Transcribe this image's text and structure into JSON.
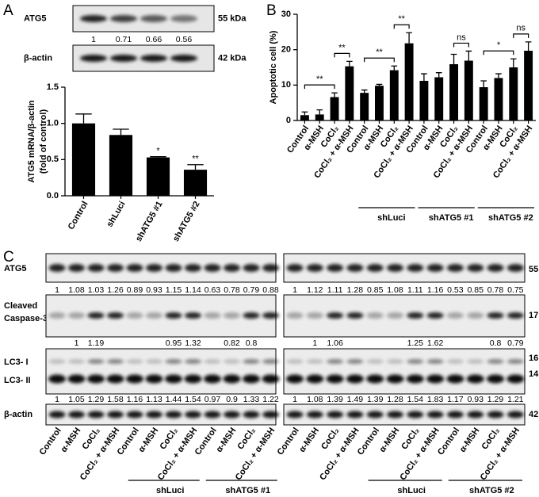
{
  "panel_labels": [
    "A",
    "B",
    "C"
  ],
  "chart_data": [
    {
      "type": "bar",
      "ylabel": [
        "ATG5 mRNA/β-actin",
        "(fold of control)"
      ],
      "categories": [
        "Control",
        "shLuci",
        "shATG5 #1",
        "shATG5 #2"
      ],
      "values": [
        1.0,
        0.84,
        0.53,
        0.36
      ],
      "errors": [
        0.13,
        0.08,
        0.01,
        0.07
      ],
      "significance": [
        null,
        null,
        "*",
        "**"
      ],
      "color": "#000000",
      "ylim": [
        0,
        1.5
      ],
      "yticks": [
        {
          "value": 0,
          "label": "0.0"
        },
        {
          "value": 0.5,
          "label": "0.5"
        },
        {
          "value": 1,
          "label": "1.0"
        },
        {
          "value": 1.5,
          "label": "1.5"
        }
      ]
    },
    {
      "type": "bar",
      "ylabel": [
        "Apoptotic cell (%)"
      ],
      "categories": [
        "Control",
        "α-MSH",
        "CoCl₂",
        "CoCl₂ + α-MSH",
        "Control",
        "α-MSH",
        "CoCl₂",
        "CoCl₂ + α-MSH",
        "Control",
        "α-MSH",
        "CoCl₂",
        "CoCl₂ + α-MSH",
        "Control",
        "α-MSH",
        "CoCl₂",
        "CoCl₂ + α-MSH"
      ],
      "values": [
        1.5,
        1.7,
        6.6,
        15.3,
        7.8,
        9.8,
        14.2,
        21.8,
        11.2,
        12.2,
        15.9,
        16.9,
        9.4,
        12.0,
        15.0,
        19.7
      ],
      "errors": [
        0.9,
        1.3,
        1.2,
        1.4,
        0.8,
        0.4,
        1.2,
        3.0,
        2.0,
        1.3,
        2.8,
        2.7,
        1.8,
        1.2,
        2.4,
        2.5
      ],
      "color": "#000000",
      "ylim": [
        0,
        30
      ],
      "yticks": [
        0,
        10,
        20,
        30
      ],
      "groups": [
        {
          "label": "shLuci",
          "start": 4,
          "end": 7
        },
        {
          "label": "shATG5 #1",
          "start": 8,
          "end": 11
        },
        {
          "label": "shATG5 #2",
          "start": 12,
          "end": 15
        }
      ],
      "brackets": [
        {
          "from": 0,
          "to": 2,
          "label": "**"
        },
        {
          "from": 2,
          "to": 3,
          "label": "**"
        },
        {
          "from": 4,
          "to": 6,
          "label": "**"
        },
        {
          "from": 6,
          "to": 7,
          "label": "**"
        },
        {
          "from": 10,
          "to": 11,
          "label": "ns"
        },
        {
          "from": 12,
          "to": 14,
          "label": "*"
        },
        {
          "from": 14,
          "to": 15,
          "label": "ns"
        }
      ]
    }
  ],
  "blot_A": {
    "rows": [
      {
        "label": "ATG5",
        "kda": "55 kDa"
      },
      {
        "label": "β-actin",
        "kda": "42 kDa"
      }
    ],
    "quant": [
      1,
      0.71,
      0.66,
      0.56
    ]
  },
  "blot_C": {
    "rows": [
      {
        "label": [
          "ATG5"
        ],
        "kda": [
          "55 kDa"
        ]
      },
      {
        "label": [
          "Cleaved",
          "Caspase-3"
        ],
        "kda": [
          "17 kDa"
        ]
      },
      {
        "label": [
          "LC3- I",
          "LC3- II"
        ],
        "kda": [
          "16 kDa",
          "14 kDa"
        ]
      },
      {
        "label": [
          "β-actin"
        ],
        "kda": [
          "42 kDa"
        ]
      }
    ],
    "lanes": [
      "Control",
      "α-MSH",
      "CoCl₂",
      "CoCl₂ + α-MSH",
      "Control",
      "α-MSH",
      "CoCl₂",
      "CoCl₂ + α-MSH",
      "Control",
      "α-MSH",
      "CoCl₂",
      "CoCl₂ + α-MSH"
    ],
    "halves": [
      {
        "groups": [
          {
            "label": "shLuci",
            "start": 4,
            "end": 7
          },
          {
            "label": "shATG5 #1",
            "start": 8,
            "end": 11
          }
        ],
        "quant": [
          [
            1,
            1.08,
            1.03,
            1.26,
            0.89,
            0.93,
            1.15,
            1.14,
            0.63,
            0.78,
            0.79,
            0.88
          ],
          [
            null,
            1,
            1.19,
            null,
            null,
            null,
            0.95,
            1.32,
            null,
            0.82,
            0.8,
            null
          ],
          [
            1,
            1.05,
            1.29,
            1.58,
            1.16,
            1.13,
            1.44,
            1.54,
            0.97,
            0.9,
            1.33,
            1.22
          ]
        ]
      },
      {
        "groups": [
          {
            "label": "shLuci",
            "start": 4,
            "end": 7
          },
          {
            "label": "shATG5 #2",
            "start": 8,
            "end": 11
          }
        ],
        "quant": [
          [
            1,
            1.12,
            1.11,
            1.28,
            0.85,
            1.08,
            1.11,
            1.16,
            0.53,
            0.85,
            0.78,
            0.75
          ],
          [
            null,
            1,
            1.06,
            null,
            null,
            null,
            1.25,
            1.62,
            null,
            null,
            0.8,
            0.79
          ],
          [
            1,
            1.08,
            1.39,
            1.49,
            1.39,
            1.28,
            1.54,
            1.83,
            1.17,
            0.93,
            1.29,
            1.21
          ]
        ]
      }
    ]
  }
}
